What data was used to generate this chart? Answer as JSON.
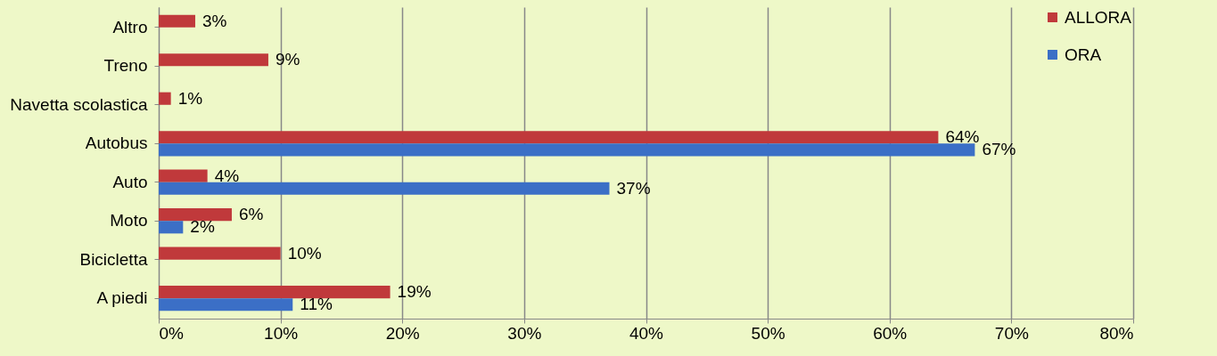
{
  "chart_data": {
    "type": "bar",
    "orientation": "horizontal",
    "categories": [
      "Altro",
      "Treno",
      "Navetta scolastica",
      "Autobus",
      "Auto",
      "Moto",
      "Bicicletta",
      "A piedi"
    ],
    "series": [
      {
        "name": "ALLORA",
        "color": "#c0393b",
        "values": [
          3,
          9,
          1,
          64,
          4,
          6,
          10,
          19
        ],
        "value_labels": [
          "3%",
          "9%",
          "1%",
          "64%",
          "4%",
          "6%",
          "10%",
          "19%"
        ]
      },
      {
        "name": "ORA",
        "color": "#3b6fc6",
        "values": [
          null,
          null,
          null,
          67,
          37,
          2,
          null,
          11
        ],
        "value_labels": [
          null,
          null,
          null,
          "67%",
          "37%",
          "2%",
          null,
          "11%"
        ]
      }
    ],
    "xlim": [
      0,
      80
    ],
    "xticks": [
      {
        "value": 0,
        "label": "0%"
      },
      {
        "value": 10,
        "label": "10%"
      },
      {
        "value": 20,
        "label": "20%"
      },
      {
        "value": 30,
        "label": "30%"
      },
      {
        "value": 40,
        "label": "40%"
      },
      {
        "value": 50,
        "label": "50%"
      },
      {
        "value": 60,
        "label": "60%"
      },
      {
        "value": 70,
        "label": "70%"
      },
      {
        "value": 80,
        "label": "80%"
      }
    ],
    "grid": "x",
    "legend": "top right"
  }
}
